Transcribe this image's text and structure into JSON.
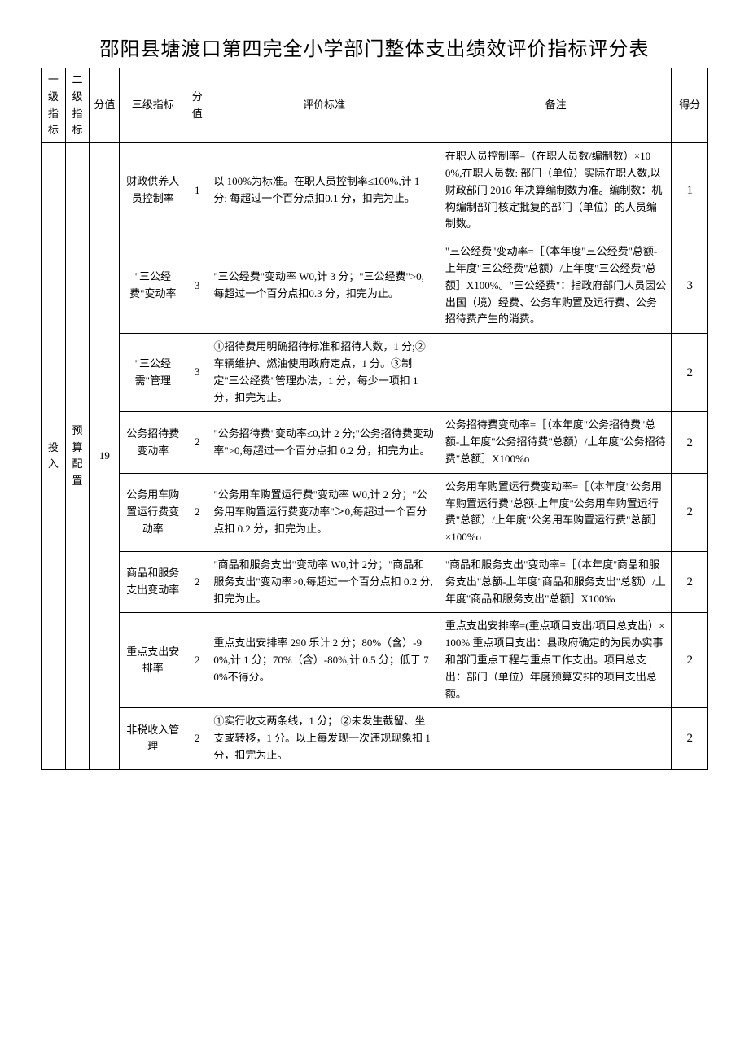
{
  "title": "邵阳县塘渡口第四完全小学部门整体支出绩效评价指标评分表",
  "headers": {
    "level1": "一级指标",
    "level2": "二级指标",
    "fullValue1": "分值",
    "level3": "三级指标",
    "fullValue2": "分值",
    "criteria": "评价标准",
    "remark": "备注",
    "score": "得分"
  },
  "level1": {
    "label": "投入"
  },
  "level2": {
    "label": "预算配置",
    "fullValue": "19"
  },
  "rows": [
    {
      "level3": "财政供养人员控制率",
      "fullValue": "1",
      "criteria": "以 100%为标准。在职人员控制率≤100%,计 1 分; 每超过一个百分点扣0.1 分，扣完为止。",
      "remark": "在职人员控制率=（在职人员数/编制数）×100%,在职人员数: 部门（单位）实际在职人数,以财政部门 2016 年决算编制数为准。编制数：机构编制部门核定批复的部门（单位）的人员编制数。",
      "score": "1"
    },
    {
      "level3": "\"三公经费\"变动率",
      "fullValue": "3",
      "criteria": "\"三公经费\"变动率 W0,计 3 分；\"三公经费\">0, 每超过一个百分点扣0.3 分，扣完为止。",
      "remark": "\"三公经费\"变动率=［（本年度\"三公经费\"总额-上年度\"三公经费\"总额）/上年度\"三公经费\"总额］X100%。\"三公经费\"：指政府部门人员因公出国（境）经费、公务车购置及运行费、公务招待费产生的消费。",
      "score": "3"
    },
    {
      "level3": "\"三公经需\"管理",
      "fullValue": "3",
      "criteria": "①招待费用明确招待标准和招待人数，1 分;②车辆维护、燃油使用政府定点，1 分。③制定\"三公经费\"管理办法，1 分，每少一项扣 1 分，扣完为止。",
      "remark": "",
      "score": "2"
    },
    {
      "level3": "公务招待费变动率",
      "fullValue": "2",
      "criteria": "\"公务招待费\"变动率≤0,计 2 分;\"公务招待费变动率\">0,每超过一个百分点扣 0.2 分，扣完为止。",
      "remark": "公务招待费变动率=［（本年度\"公务招待费\"总额-上年度\"公务招待费\"总额）/上年度\"公务招待费\"总额］X100%o",
      "score": "2"
    },
    {
      "level3": "公务用车购置运行费变动率",
      "fullValue": "2",
      "criteria": "\"公务用车购置运行费\"变动率 W0,计 2 分；\"公务用车购置运行费变动率\"＞0,每超过一个百分点扣 0.2 分，扣完为止。",
      "remark": "公务用车购置运行费变动率=［（本年度\"公务用车购置运行费\"总额-上年度\"公务用车购置运行费\"总额）/上年度\"公务用车购置运行费\"总额］×100%o",
      "score": "2"
    },
    {
      "level3": "商品和服务支出变动率",
      "fullValue": "2",
      "criteria": "\"商品和服务支出\"变动率 W0,计 2分；\"商品和服务支出\"变动率>0,每超过一个百分点扣 0.2 分,扣完为止。",
      "remark": "\"商品和服务支出\"变动率=［（本年度''商品和服务支出\"总额-上年度\"商品和服务支出\"总额）/上年度\"商品和服务支出\"总额］X100‰",
      "score": "2"
    },
    {
      "level3": "重点支出安排率",
      "fullValue": "2",
      "criteria": "重点支出安排率 290 乐计 2 分；80%（含）-90%,计 1 分；70%（含）-80%,计 0.5 分；低于 70%不得分。",
      "remark": "重点支出安排率=(重点项目支出/项目总支出）×100%\n重点项目支出：县政府确定的为民办实事和部门重点工程与重点工作支出。项目总支出：部门（单位）年度预算安排的项目支出总额。",
      "score": "2"
    },
    {
      "level3": "非税收入管理",
      "fullValue": "2",
      "criteria": "①实行收支两条线，1 分；\n②未发生截留、坐支或转移，1 分。以上每发现一次违规现象扣 1 分，扣完为止。",
      "remark": "",
      "score": "2"
    }
  ]
}
